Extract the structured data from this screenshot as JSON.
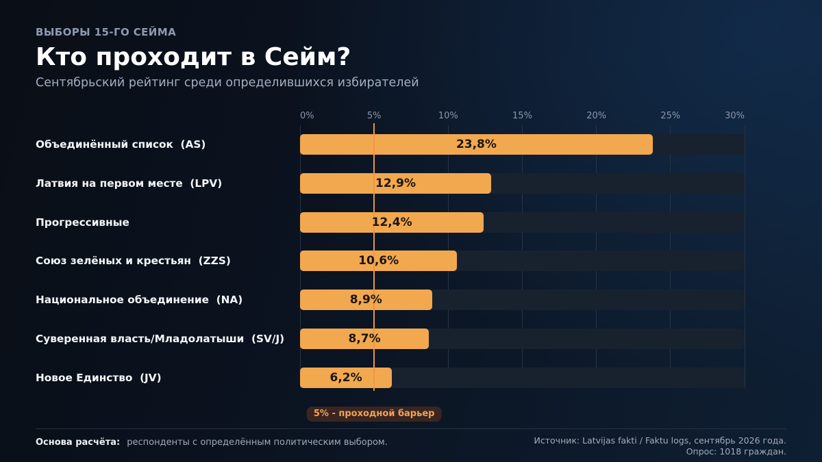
{
  "header": {
    "kicker": "ВЫБОРЫ 15-ГО СЕЙМА",
    "title": "Кто проходит в Сейм?",
    "subtitle": "Сентябрьский рейтинг среди определившихся избирателей"
  },
  "chart_data": {
    "type": "bar",
    "orientation": "horizontal",
    "categories": [
      "Объединённый список  (AS)",
      "Латвия на первом месте  (LPV)",
      "Прогрессивные",
      "Союз зелёных и крестьян  (ZZS)",
      "Национальное объединение  (NA)",
      "Суверенная власть/Младолатыши  (SV/J)",
      "Новое Единство  (JV)"
    ],
    "values": [
      23.8,
      12.9,
      12.4,
      10.6,
      8.9,
      8.7,
      6.2
    ],
    "value_labels": [
      "23,8%",
      "12,9%",
      "12,4%",
      "10,6%",
      "8,9%",
      "8,7%",
      "6,2%"
    ],
    "xlim": [
      0,
      30
    ],
    "x_ticks": [
      0,
      5,
      10,
      15,
      20,
      25,
      30
    ],
    "x_tick_labels": [
      "0%",
      "5%",
      "10%",
      "15%",
      "20%",
      "25%",
      "30%"
    ],
    "grid": true,
    "threshold": {
      "value": 5,
      "label": "5% - проходной барьер"
    },
    "colors": {
      "bar": "#f2a84f",
      "track": "#18222f",
      "threshold": "#ec9743"
    }
  },
  "footer": {
    "basis_label": "Основа расчёта:",
    "basis_text": "респонденты с определённым политическим выбором.",
    "source": "Источник: Latvijas fakti / Faktu logs, сентябрь 2026 года.",
    "sample": "Опрос: 1018 граждан."
  }
}
